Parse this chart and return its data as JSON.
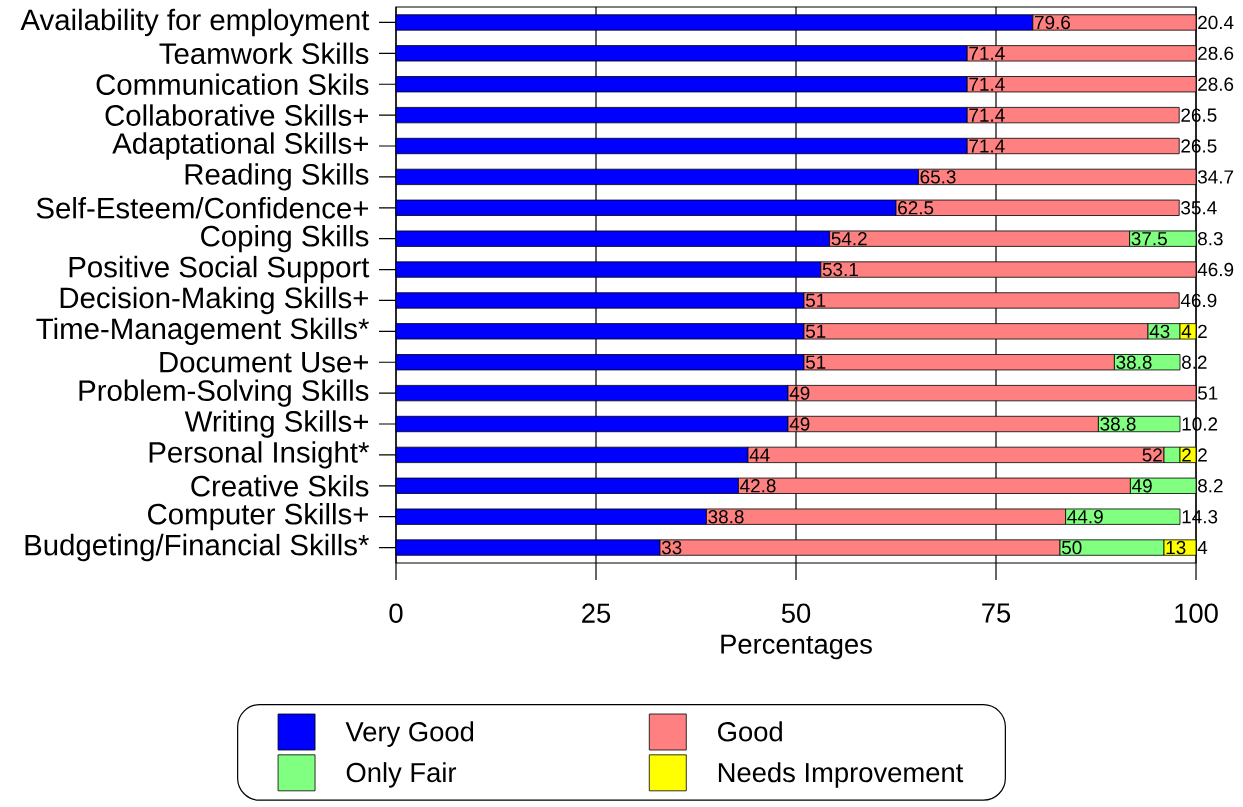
{
  "chart_data": {
    "type": "bar",
    "orientation": "horizontal",
    "stacked": true,
    "categories": [
      "Availability for employment",
      "Teamwork Skills",
      "Communication Skils",
      "Collaborative Skills+",
      "Adaptational Skills+",
      "Reading Skills",
      "Self-Esteem/Confidence+",
      "Coping Skills",
      "Positive Social Support",
      "Decision-Making Skills+",
      "Time-Management Skills*",
      "Document Use+",
      "Problem-Solving Skills",
      "Writing Skills+",
      "Personal Insight*",
      "Creative Skils",
      "Computer Skills+",
      "Budgeting/Financial Skills*"
    ],
    "series": [
      {
        "name": "Very Good",
        "color": "#0000ff",
        "values": [
          79.6,
          71.4,
          71.4,
          71.4,
          71.4,
          65.3,
          62.5,
          54.2,
          53.1,
          51,
          51,
          51,
          49,
          49,
          44,
          42.8,
          38.8,
          33
        ]
      },
      {
        "name": "Good",
        "color": "#ff8080",
        "values": [
          20.4,
          28.6,
          28.6,
          26.5,
          26.5,
          34.7,
          35.4,
          37.5,
          46.9,
          46.9,
          43,
          38.8,
          51,
          38.8,
          52,
          49,
          44.9,
          50
        ]
      },
      {
        "name": "Only Fair",
        "color": "#80ff80",
        "values": [
          null,
          null,
          null,
          null,
          null,
          null,
          null,
          8.3,
          null,
          null,
          4,
          8.2,
          null,
          10.2,
          2,
          8.2,
          14.3,
          13
        ]
      },
      {
        "name": "Needs Improvement",
        "color": "#ffff00",
        "values": [
          null,
          null,
          null,
          null,
          null,
          null,
          null,
          null,
          null,
          null,
          2,
          null,
          null,
          null,
          2,
          null,
          null,
          4
        ]
      }
    ],
    "xlim": [
      0,
      100
    ],
    "xticks": [
      0,
      25,
      50,
      75,
      100
    ],
    "xlabel": "Percentages",
    "grid": "x",
    "legend": "bottom",
    "data_labels": true
  }
}
